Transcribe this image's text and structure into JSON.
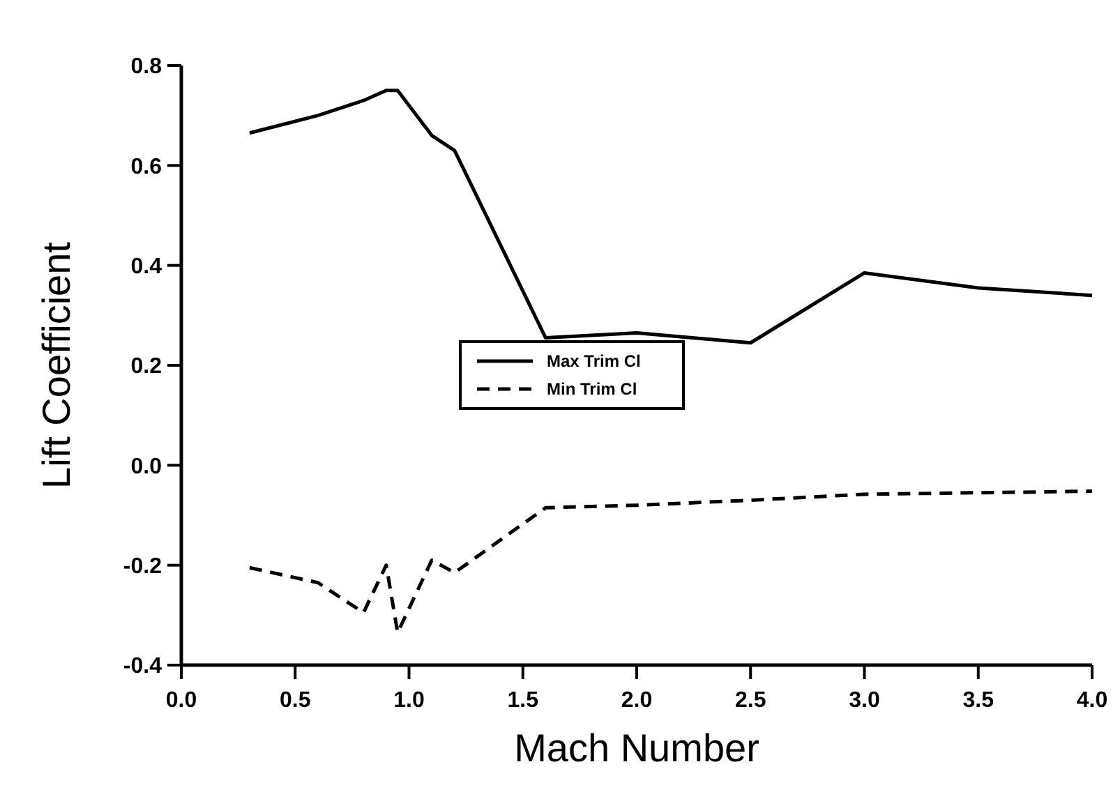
{
  "chart_data": {
    "type": "line",
    "xlabel": "Mach Number",
    "ylabel": "Lift Coefficient",
    "xlim": [
      0,
      4
    ],
    "ylim": [
      -0.4,
      0.8
    ],
    "xticks": [
      {
        "value": 0,
        "label": "0.0"
      },
      0.5,
      {
        "value": 1,
        "label": "1.0"
      },
      1.5,
      {
        "value": 2,
        "label": "2.0"
      },
      2.5,
      {
        "value": 3,
        "label": "3.0"
      },
      3.5,
      {
        "value": 4,
        "label": "4.0"
      }
    ],
    "yticks": [
      {
        "value": -0.4,
        "label": "-0.4"
      },
      {
        "value": -0.2,
        "label": "-0.2"
      },
      {
        "value": 0,
        "label": "0.0"
      },
      0.2,
      0.4,
      0.6,
      0.8
    ],
    "grid": false,
    "legend": "center",
    "marker": "none",
    "series": [
      {
        "name": "Max Trim Cl",
        "color": "#000000",
        "line_style": "solid",
        "x": [
          0.3,
          0.6,
          0.8,
          0.9,
          0.95,
          1.1,
          1.2,
          1.6,
          2.0,
          2.5,
          3.0,
          3.5,
          4.0
        ],
        "values": [
          0.665,
          0.7,
          0.73,
          0.75,
          0.75,
          0.66,
          0.63,
          0.255,
          0.265,
          0.245,
          0.385,
          0.355,
          0.34
        ]
      },
      {
        "name": "Min Trim Cl",
        "color": "#000000",
        "line_style": "dashed",
        "x": [
          0.3,
          0.6,
          0.8,
          0.9,
          0.95,
          1.1,
          1.2,
          1.6,
          2.0,
          2.5,
          3.0,
          4.0
        ],
        "values": [
          -0.205,
          -0.235,
          -0.295,
          -0.2,
          -0.335,
          -0.19,
          -0.215,
          -0.085,
          -0.08,
          -0.07,
          -0.058,
          -0.052
        ]
      }
    ]
  }
}
